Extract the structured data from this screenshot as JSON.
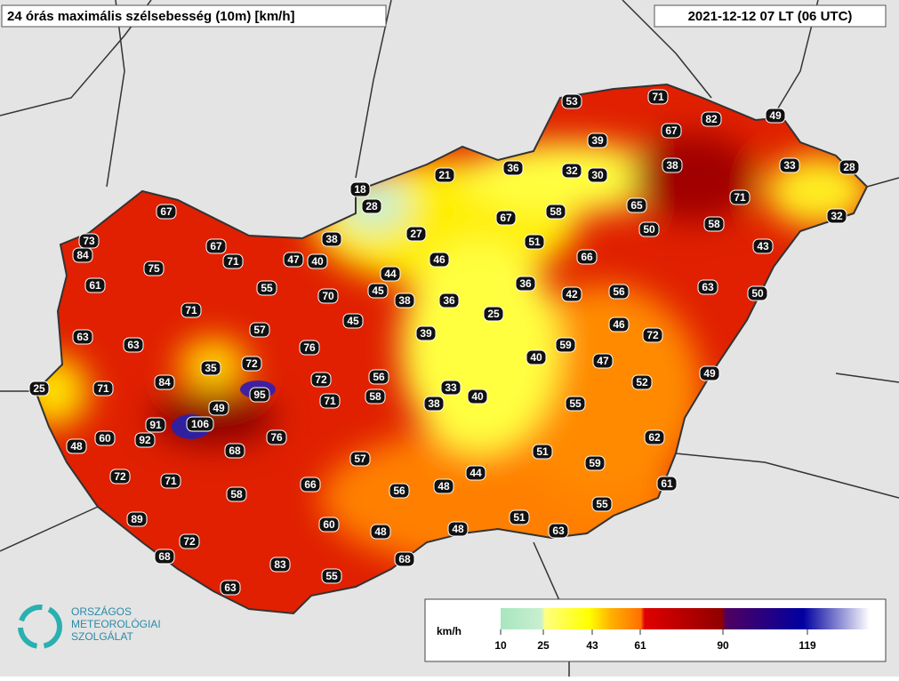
{
  "title": "24 órás maximális szélsebesség (10m) [km/h]",
  "timestamp": "2021-12-12 07 LT (06 UTC)",
  "stations": [
    53,
    71,
    82,
    49,
    67,
    39,
    36,
    32,
    30,
    38,
    33,
    28,
    21,
    18,
    28,
    67,
    67,
    58,
    65,
    71,
    32,
    50,
    58,
    73,
    84,
    67,
    38,
    27,
    51,
    43,
    71,
    47,
    40,
    46,
    66,
    75,
    44,
    61,
    55,
    36,
    56,
    63,
    50,
    70,
    45,
    38,
    36,
    42,
    71,
    25,
    45,
    46,
    63,
    57,
    39,
    72,
    63,
    76,
    59,
    47,
    40,
    35,
    72,
    49,
    72,
    56,
    52,
    25,
    71,
    84,
    95,
    33,
    40,
    71,
    58,
    38,
    55,
    49,
    91,
    106,
    76,
    62,
    48,
    60,
    92,
    68,
    51,
    59,
    57,
    72,
    71,
    44,
    66,
    61,
    56,
    48,
    58,
    55,
    89,
    51,
    60,
    48,
    48,
    63,
    72,
    68,
    68,
    83,
    55,
    63
  ],
  "legend": {
    "unit": "km/h",
    "ticks": [
      10,
      25,
      43,
      61,
      90,
      119
    ]
  },
  "logo": [
    "ORSZÁGOS",
    "METEOROLÓGIAI",
    "SZOLGÁLAT"
  ]
}
